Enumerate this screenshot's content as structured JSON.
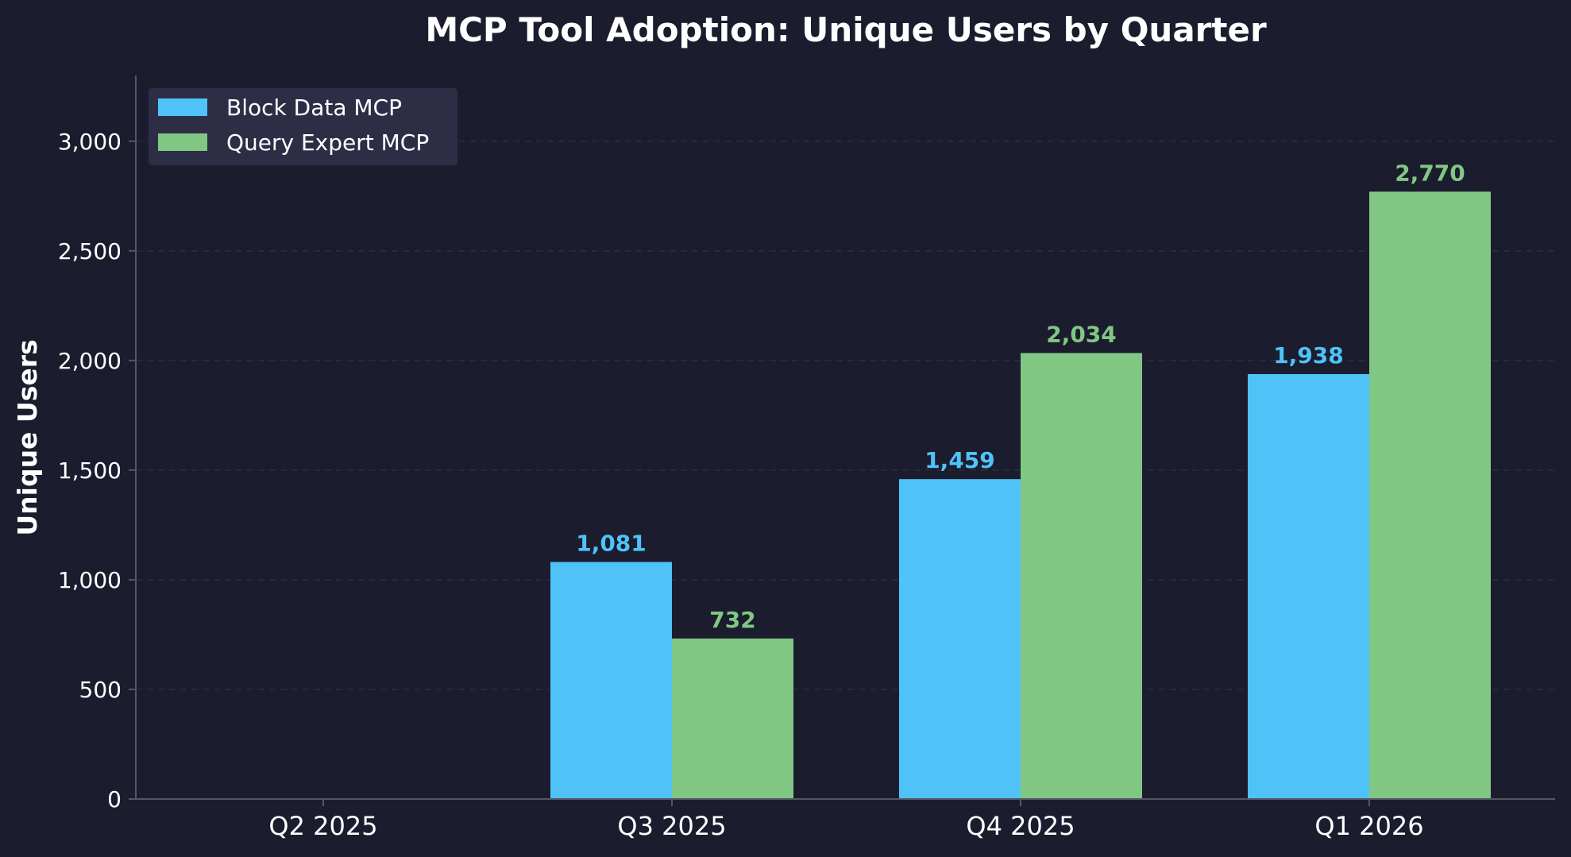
{
  "chart_data": {
    "type": "bar",
    "title": "MCP Tool Adoption: Unique Users by Quarter",
    "xlabel": "",
    "ylabel": "Unique Users",
    "categories": [
      "Q2 2025",
      "Q3 2025",
      "Q4 2025",
      "Q1 2026"
    ],
    "series": [
      {
        "name": "Block Data MCP",
        "color": "#4fc3f7",
        "values": [
          0,
          1081,
          1459,
          1938
        ],
        "labels": [
          "",
          "1,081",
          "1,459",
          "1,938"
        ]
      },
      {
        "name": "Query Expert MCP",
        "color": "#81c784",
        "values": [
          0,
          732,
          2034,
          2770
        ],
        "labels": [
          "",
          "732",
          "2,034",
          "2,770"
        ]
      }
    ],
    "ylim": [
      0,
      3300
    ],
    "yticks": [
      0,
      500,
      1000,
      1500,
      2000,
      2500,
      3000
    ],
    "ytick_labels": [
      "0",
      "500",
      "1,000",
      "1,500",
      "2,000",
      "2,500",
      "3,000"
    ],
    "grid": "y-dashed",
    "legend_position": "top-left"
  },
  "colors": {
    "background": "#1b1c2e",
    "grid": "#2c2d3f",
    "axis": "#555666",
    "legend_bg": "#30314a"
  }
}
